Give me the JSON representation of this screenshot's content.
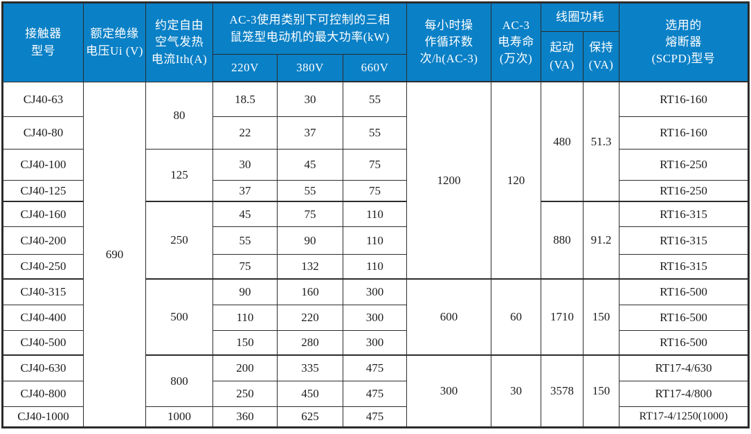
{
  "colors": {
    "header_bg": "#0a80c6",
    "grid_line": "#2b2b2b",
    "header_text": "#ffffff",
    "cell_text": "#1b1b1b"
  },
  "header": {
    "model": [
      "接触器",
      "型号"
    ],
    "ui": [
      "额定绝缘",
      "电压Ui (V)"
    ],
    "ith": [
      "约定自由",
      "空气发热",
      "电流Ith(A)"
    ],
    "ac3_group": [
      "AC-3使用类别下可控制的三相",
      "鼠笼型电动机的最大功率(kW)"
    ],
    "v220": "220V",
    "v380": "380V",
    "v660": "660V",
    "ops": [
      "每小时操",
      "作循环数",
      "次/h(AC-3)"
    ],
    "life": [
      "AC-3",
      "电寿命",
      "(万次)"
    ],
    "coil_group": "线圈功耗",
    "start": [
      "起动",
      "(VA)"
    ],
    "hold": [
      "保持",
      "(VA)"
    ],
    "fuse": [
      "选用的",
      "熔断器",
      "(SCPD)型号"
    ]
  },
  "rows": [
    {
      "model": "CJ40-63",
      "p220": "18.5",
      "p380": "30",
      "p660": "55",
      "fuse": "RT16-160"
    },
    {
      "model": "CJ40-80",
      "p220": "22",
      "p380": "37",
      "p660": "55",
      "fuse": "RT16-160"
    },
    {
      "model": "CJ40-100",
      "p220": "30",
      "p380": "45",
      "p660": "75",
      "fuse": "RT16-250"
    },
    {
      "model": "CJ40-125",
      "p220": "37",
      "p380": "55",
      "p660": "75",
      "fuse": "RT16-250"
    },
    {
      "model": "CJ40-160",
      "p220": "45",
      "p380": "75",
      "p660": "110",
      "fuse": "RT16-315"
    },
    {
      "model": "CJ40-200",
      "p220": "55",
      "p380": "90",
      "p660": "110",
      "fuse": "RT16-315"
    },
    {
      "model": "CJ40-250",
      "p220": "75",
      "p380": "132",
      "p660": "110",
      "fuse": "RT16-315"
    },
    {
      "model": "CJ40-315",
      "p220": "90",
      "p380": "160",
      "p660": "300",
      "fuse": "RT16-500"
    },
    {
      "model": "CJ40-400",
      "p220": "110",
      "p380": "220",
      "p660": "300",
      "fuse": "RT16-500"
    },
    {
      "model": "CJ40-500",
      "p220": "150",
      "p380": "280",
      "p660": "300",
      "fuse": "RT16-500"
    },
    {
      "model": "CJ40-630",
      "p220": "200",
      "p380": "335",
      "p660": "475",
      "fuse": "RT17-4/630"
    },
    {
      "model": "CJ40-800",
      "p220": "250",
      "p380": "450",
      "p660": "475",
      "fuse": "RT17-4/800"
    },
    {
      "model": "CJ40-1000",
      "p220": "360",
      "p380": "625",
      "p660": "475",
      "fuse": "RT17-4/1250(1000)"
    }
  ],
  "merged": {
    "ui": "690",
    "ith": [
      "80",
      "125",
      "250",
      "500",
      "800",
      "1000"
    ],
    "ops": [
      "1200",
      "600",
      "300"
    ],
    "life": [
      "120",
      "60",
      "30"
    ],
    "start": [
      "480",
      "880",
      "1710",
      "3578"
    ],
    "hold": [
      "51.3",
      "91.2",
      "150",
      "150"
    ]
  }
}
